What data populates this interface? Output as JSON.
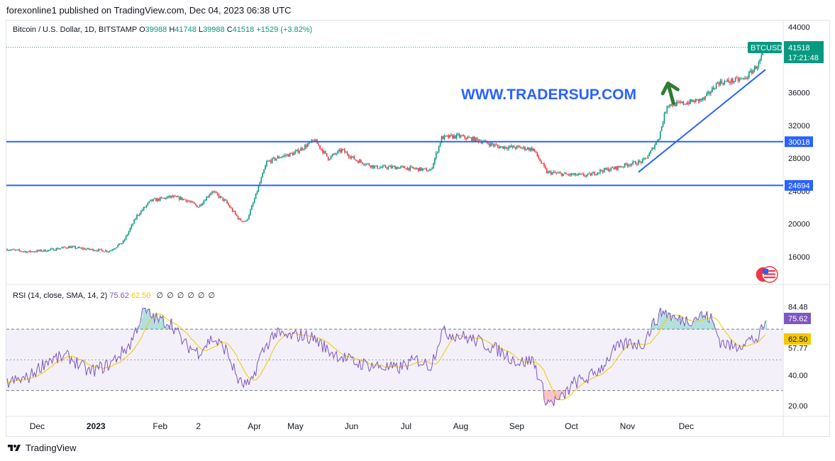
{
  "header": {
    "publisher": "forexonline1 published on TradingView.com, Dec 04, 2023 06:38 UTC"
  },
  "legend": {
    "symbol": "Bitcoin / U.S. Dollar, 1D, BITSTAMP",
    "o_label": "O",
    "o_value": "39988",
    "h_label": "H",
    "h_value": "41748",
    "l_label": "L",
    "l_value": "39988",
    "c_label": "C",
    "c_value": "41518",
    "change": "+1529 (+3.82%)"
  },
  "watermark": "WWW.TRADERSUP.COM",
  "price_axis": {
    "ticks": [
      "44000",
      "36000",
      "32000",
      "28000",
      "24000",
      "20000",
      "16000"
    ],
    "last_price": "41518",
    "countdown": "17:21:48",
    "symbol_tag": "BTCUSD",
    "level_upper": "30018",
    "level_lower": "24694"
  },
  "rsi": {
    "label": "RSI (14, close, SMA, 14, 2)",
    "rsi_value": "75.62",
    "sma_value": "62.50",
    "ticks": [
      "84.48",
      "57.77",
      "40.00",
      "20.00"
    ],
    "hidden_glyphs": [
      "∅",
      "∅",
      "∅",
      "∅",
      "∅",
      "∅"
    ]
  },
  "time_axis": {
    "labels": [
      "Dec",
      "2023",
      "Feb",
      "2",
      "Apr",
      "May",
      "Jun",
      "Jul",
      "Aug",
      "Sep",
      "Oct",
      "Nov",
      "Dec"
    ]
  },
  "footer": {
    "brand": "TradingView"
  },
  "colors": {
    "up": "#089981",
    "down": "#f23645",
    "level": "#2962ff",
    "rsi": "#7e57c2",
    "sma": "#f3c800",
    "arrow": "#2e7d32",
    "watermark": "#2962ff"
  },
  "chart_data": {
    "type": "candlestick",
    "title": "Bitcoin / U.S. Dollar, 1D, BITSTAMP",
    "ylim": [
      14000,
      45000
    ],
    "price_path": {
      "months": [
        "Dec",
        "2023",
        "Feb",
        "2",
        "Apr",
        "May",
        "Jun",
        "Jul",
        "Aug",
        "Sep",
        "Oct",
        "Nov",
        "Dec"
      ],
      "anchors": [
        [
          0,
          16900
        ],
        [
          15,
          16600
        ],
        [
          30,
          16800
        ],
        [
          45,
          17200
        ],
        [
          60,
          16900
        ],
        [
          75,
          16700
        ],
        [
          85,
          17800
        ],
        [
          95,
          21000
        ],
        [
          105,
          22800
        ],
        [
          120,
          23300
        ],
        [
          130,
          23000
        ],
        [
          140,
          22100
        ],
        [
          150,
          24000
        ],
        [
          160,
          22700
        ],
        [
          170,
          20500
        ],
        [
          175,
          20300
        ],
        [
          180,
          22500
        ],
        [
          190,
          27500
        ],
        [
          200,
          28200
        ],
        [
          210,
          28600
        ],
        [
          225,
          30200
        ],
        [
          235,
          28000
        ],
        [
          245,
          29000
        ],
        [
          255,
          27800
        ],
        [
          270,
          26900
        ],
        [
          285,
          26900
        ],
        [
          300,
          26700
        ],
        [
          310,
          26500
        ],
        [
          318,
          30500
        ],
        [
          330,
          30700
        ],
        [
          345,
          30200
        ],
        [
          360,
          29400
        ],
        [
          375,
          29300
        ],
        [
          385,
          29100
        ],
        [
          395,
          26300
        ],
        [
          410,
          26000
        ],
        [
          425,
          25900
        ],
        [
          435,
          26500
        ],
        [
          445,
          26800
        ],
        [
          455,
          27300
        ],
        [
          465,
          27600
        ],
        [
          470,
          28500
        ],
        [
          477,
          30600
        ],
        [
          483,
          34500
        ],
        [
          495,
          34700
        ],
        [
          510,
          35200
        ],
        [
          520,
          37200
        ],
        [
          530,
          37400
        ],
        [
          540,
          37700
        ],
        [
          550,
          39500
        ],
        [
          555,
          41518
        ]
      ]
    },
    "levels": [
      30018,
      24694
    ],
    "rsi": {
      "ylim": [
        15,
        95
      ],
      "bands": [
        70,
        50,
        30
      ],
      "anchors": [
        [
          0,
          35
        ],
        [
          15,
          38
        ],
        [
          30,
          50
        ],
        [
          45,
          52
        ],
        [
          60,
          42
        ],
        [
          75,
          47
        ],
        [
          90,
          60
        ],
        [
          100,
          82
        ],
        [
          110,
          76
        ],
        [
          120,
          74
        ],
        [
          130,
          60
        ],
        [
          140,
          55
        ],
        [
          150,
          64
        ],
        [
          160,
          57
        ],
        [
          170,
          35
        ],
        [
          178,
          33
        ],
        [
          185,
          52
        ],
        [
          195,
          67
        ],
        [
          205,
          65
        ],
        [
          215,
          66
        ],
        [
          225,
          64
        ],
        [
          235,
          56
        ],
        [
          245,
          52
        ],
        [
          255,
          48
        ],
        [
          270,
          46
        ],
        [
          285,
          44
        ],
        [
          300,
          50
        ],
        [
          310,
          46
        ],
        [
          318,
          68
        ],
        [
          330,
          66
        ],
        [
          345,
          62
        ],
        [
          360,
          56
        ],
        [
          375,
          48
        ],
        [
          385,
          50
        ],
        [
          395,
          22
        ],
        [
          405,
          24
        ],
        [
          415,
          35
        ],
        [
          425,
          38
        ],
        [
          435,
          45
        ],
        [
          445,
          57
        ],
        [
          455,
          61
        ],
        [
          465,
          60
        ],
        [
          472,
          72
        ],
        [
          480,
          82
        ],
        [
          490,
          76
        ],
        [
          500,
          76
        ],
        [
          508,
          79
        ],
        [
          515,
          77
        ],
        [
          522,
          62
        ],
        [
          532,
          58
        ],
        [
          540,
          62
        ],
        [
          550,
          64
        ],
        [
          555,
          75.62
        ]
      ]
    }
  }
}
